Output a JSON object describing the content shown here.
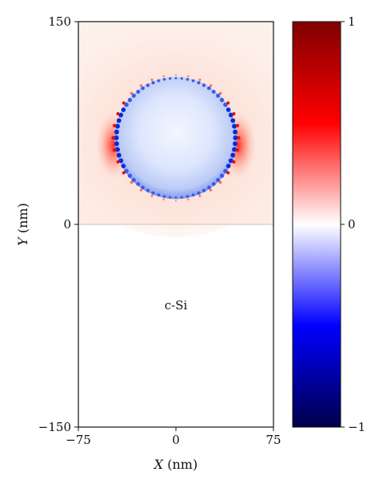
{
  "chart_data": {
    "type": "heatmap",
    "title": "",
    "xlabel": {
      "var": "X",
      "unit": " (nm)"
    },
    "ylabel": {
      "var": "Y",
      "unit": " (nm)"
    },
    "xlim": [
      -75,
      75
    ],
    "ylim": [
      -150,
      150
    ],
    "x_ticks": [
      {
        "value": -75,
        "label": "−75"
      },
      {
        "value": 0,
        "label": "0"
      },
      {
        "value": 75,
        "label": "75"
      }
    ],
    "y_ticks": [
      {
        "value": 150,
        "label": "150"
      },
      {
        "value": 0,
        "label": "0"
      },
      {
        "value": -150,
        "label": "−150"
      }
    ],
    "annotations": [
      {
        "text": "c-Si",
        "x": 0,
        "y": -60
      }
    ],
    "colorbar": {
      "colormap": "seismic",
      "range": [
        -1,
        1
      ],
      "ticks": [
        {
          "value": 1,
          "label": "1"
        },
        {
          "value": 0,
          "label": "0"
        },
        {
          "value": -1,
          "label": "−1"
        }
      ],
      "stops": [
        "#00004c",
        "#0000ff",
        "#ffffff",
        "#ff0000",
        "#7f0000"
      ]
    },
    "features": {
      "particle": {
        "center": [
          0,
          64
        ],
        "radius": 47,
        "interior_value": -0.25,
        "edge_value": -0.9,
        "outside_edge_value": 0.7
      },
      "substrate": {
        "y_top": 0,
        "value": 0
      },
      "background_above": 0.05
    }
  }
}
